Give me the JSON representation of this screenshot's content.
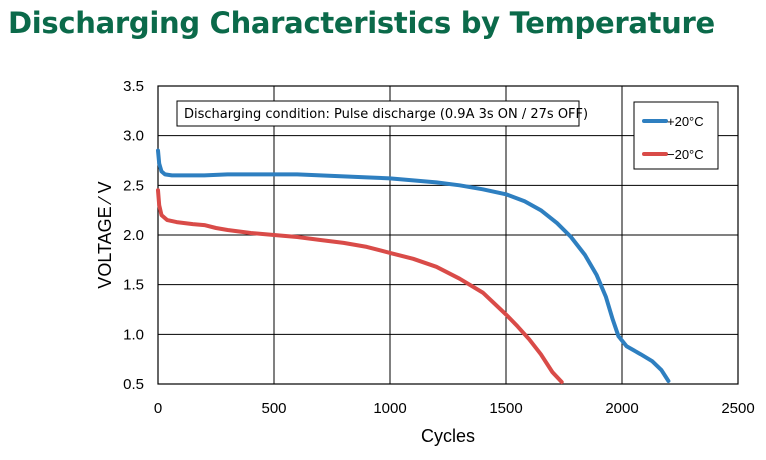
{
  "chart_data": {
    "type": "line",
    "title": "Discharging Characteristics by Temperature",
    "xlabel": "Cycles",
    "ylabel": "VOLTAGE ⁄ V",
    "xlim": [
      0,
      2500
    ],
    "ylim": [
      0.5,
      3.5
    ],
    "xticks": [
      "0",
      "500",
      "1000",
      "1500",
      "2000",
      "2500"
    ],
    "yticks": [
      "0.5",
      "1.0",
      "1.5",
      "2.0",
      "2.5",
      "3.0",
      "3.5"
    ],
    "grid": true,
    "legend_position": "top-right",
    "annotation": "Discharging condition: Pulse discharge (0.9A 3s ON / 27s OFF)",
    "series": [
      {
        "name": "+20°C",
        "color": "#2e7fc0",
        "points": [
          [
            0,
            2.85
          ],
          [
            5,
            2.72
          ],
          [
            15,
            2.64
          ],
          [
            30,
            2.61
          ],
          [
            60,
            2.6
          ],
          [
            100,
            2.6
          ],
          [
            200,
            2.6
          ],
          [
            300,
            2.61
          ],
          [
            400,
            2.61
          ],
          [
            500,
            2.61
          ],
          [
            600,
            2.61
          ],
          [
            700,
            2.6
          ],
          [
            800,
            2.59
          ],
          [
            900,
            2.58
          ],
          [
            1000,
            2.57
          ],
          [
            1100,
            2.55
          ],
          [
            1200,
            2.53
          ],
          [
            1300,
            2.5
          ],
          [
            1400,
            2.46
          ],
          [
            1500,
            2.41
          ],
          [
            1580,
            2.34
          ],
          [
            1650,
            2.25
          ],
          [
            1720,
            2.12
          ],
          [
            1780,
            1.98
          ],
          [
            1840,
            1.8
          ],
          [
            1890,
            1.6
          ],
          [
            1930,
            1.38
          ],
          [
            1960,
            1.15
          ],
          [
            1985,
            0.98
          ],
          [
            2020,
            0.88
          ],
          [
            2080,
            0.8
          ],
          [
            2130,
            0.73
          ],
          [
            2170,
            0.64
          ],
          [
            2200,
            0.53
          ]
        ]
      },
      {
        "name": "−20°C",
        "color": "#d94b48",
        "points": [
          [
            0,
            2.45
          ],
          [
            5,
            2.3
          ],
          [
            15,
            2.2
          ],
          [
            40,
            2.15
          ],
          [
            80,
            2.13
          ],
          [
            150,
            2.11
          ],
          [
            200,
            2.1
          ],
          [
            250,
            2.07
          ],
          [
            300,
            2.05
          ],
          [
            400,
            2.02
          ],
          [
            500,
            2.0
          ],
          [
            600,
            1.98
          ],
          [
            700,
            1.95
          ],
          [
            800,
            1.92
          ],
          [
            900,
            1.88
          ],
          [
            1000,
            1.82
          ],
          [
            1100,
            1.76
          ],
          [
            1200,
            1.68
          ],
          [
            1300,
            1.56
          ],
          [
            1400,
            1.42
          ],
          [
            1500,
            1.2
          ],
          [
            1550,
            1.08
          ],
          [
            1600,
            0.95
          ],
          [
            1650,
            0.8
          ],
          [
            1700,
            0.62
          ],
          [
            1740,
            0.52
          ]
        ]
      }
    ]
  }
}
